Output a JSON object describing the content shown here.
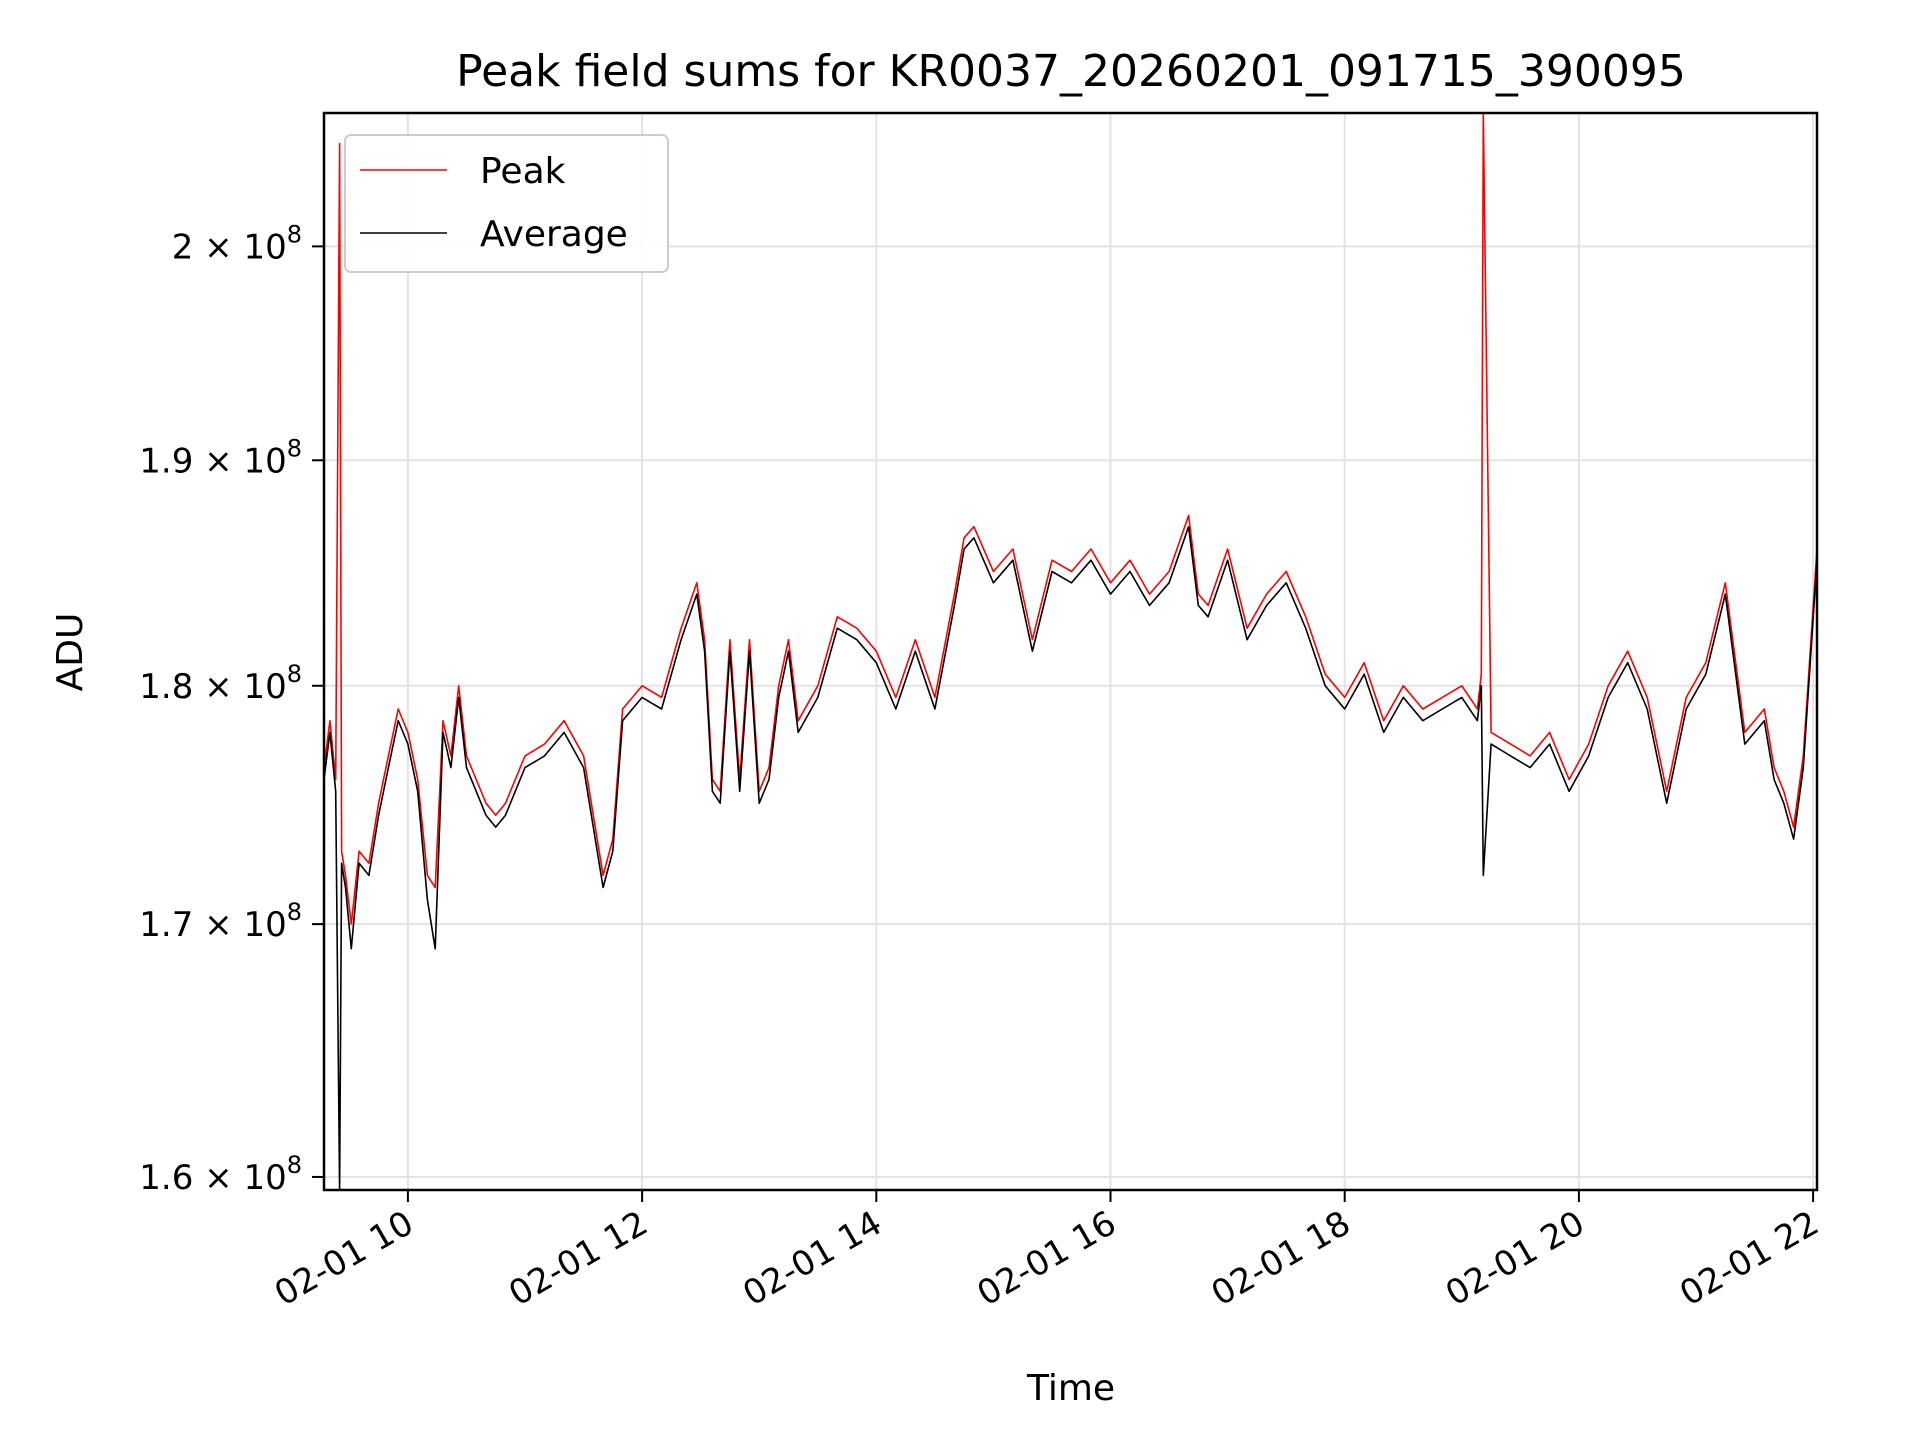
{
  "chart_data": {
    "type": "line",
    "title": "Peak field sums for KR0037_20260201_091715_390095",
    "xlabel": "Time",
    "ylabel": "ADU",
    "y_scale": "log",
    "grid": true,
    "legend_placement": "top-left",
    "x_tick_labels": [
      "02-01 10",
      "02-01 12",
      "02-01 14",
      "02-01 16",
      "02-01 18",
      "02-01 20",
      "02-01 22"
    ],
    "x_ticks": [
      "2026-02-01 10:00",
      "2026-02-01 12:00",
      "2026-02-01 14:00",
      "2026-02-01 16:00",
      "2026-02-01 18:00",
      "2026-02-01 20:00",
      "2026-02-01 22:00"
    ],
    "xlim": [
      "2026-02-01 09:17",
      "2026-02-01 22:02"
    ],
    "y_ticks": [
      {
        "value": 160000000,
        "mantissa": "1.6",
        "exponent": "8"
      },
      {
        "value": 170000000,
        "mantissa": "1.7",
        "exponent": "8"
      },
      {
        "value": 180000000,
        "mantissa": "1.8",
        "exponent": "8"
      },
      {
        "value": 190000000,
        "mantissa": "1.9",
        "exponent": "8"
      },
      {
        "value": 200000000,
        "mantissa": "2",
        "exponent": "8"
      }
    ],
    "ylim": [
      159500000,
      206500000
    ],
    "series": [
      {
        "name": "Peak",
        "color": "#ff0000",
        "x": [
          "2026-02-01 09:17",
          "2026-02-01 09:20",
          "2026-02-01 09:23",
          "2026-02-01 09:25",
          "2026-02-01 09:26",
          "2026-02-01 09:28",
          "2026-02-01 09:31",
          "2026-02-01 09:35",
          "2026-02-01 09:40",
          "2026-02-01 09:45",
          "2026-02-01 09:50",
          "2026-02-01 09:55",
          "2026-02-01 10:00",
          "2026-02-01 10:05",
          "2026-02-01 10:10",
          "2026-02-01 10:14",
          "2026-02-01 10:18",
          "2026-02-01 10:22",
          "2026-02-01 10:26",
          "2026-02-01 10:30",
          "2026-02-01 10:35",
          "2026-02-01 10:40",
          "2026-02-01 10:45",
          "2026-02-01 10:50",
          "2026-02-01 11:00",
          "2026-02-01 11:10",
          "2026-02-01 11:20",
          "2026-02-01 11:30",
          "2026-02-01 11:35",
          "2026-02-01 11:40",
          "2026-02-01 11:45",
          "2026-02-01 11:50",
          "2026-02-01 12:00",
          "2026-02-01 12:10",
          "2026-02-01 12:20",
          "2026-02-01 12:28",
          "2026-02-01 12:32",
          "2026-02-01 12:36",
          "2026-02-01 12:40",
          "2026-02-01 12:45",
          "2026-02-01 12:50",
          "2026-02-01 12:55",
          "2026-02-01 13:00",
          "2026-02-01 13:05",
          "2026-02-01 13:10",
          "2026-02-01 13:15",
          "2026-02-01 13:20",
          "2026-02-01 13:30",
          "2026-02-01 13:40",
          "2026-02-01 13:50",
          "2026-02-01 14:00",
          "2026-02-01 14:10",
          "2026-02-01 14:20",
          "2026-02-01 14:30",
          "2026-02-01 14:40",
          "2026-02-01 14:45",
          "2026-02-01 14:50",
          "2026-02-01 15:00",
          "2026-02-01 15:10",
          "2026-02-01 15:20",
          "2026-02-01 15:30",
          "2026-02-01 15:40",
          "2026-02-01 15:50",
          "2026-02-01 16:00",
          "2026-02-01 16:10",
          "2026-02-01 16:20",
          "2026-02-01 16:30",
          "2026-02-01 16:40",
          "2026-02-01 16:45",
          "2026-02-01 16:50",
          "2026-02-01 17:00",
          "2026-02-01 17:10",
          "2026-02-01 17:20",
          "2026-02-01 17:30",
          "2026-02-01 17:40",
          "2026-02-01 17:50",
          "2026-02-01 18:00",
          "2026-02-01 18:10",
          "2026-02-01 18:20",
          "2026-02-01 18:30",
          "2026-02-01 18:40",
          "2026-02-01 18:50",
          "2026-02-01 19:00",
          "2026-02-01 19:08",
          "2026-02-01 19:10",
          "2026-02-01 19:11",
          "2026-02-01 19:15",
          "2026-02-01 19:25",
          "2026-02-01 19:35",
          "2026-02-01 19:45",
          "2026-02-01 19:55",
          "2026-02-01 20:05",
          "2026-02-01 20:15",
          "2026-02-01 20:25",
          "2026-02-01 20:35",
          "2026-02-01 20:45",
          "2026-02-01 20:55",
          "2026-02-01 21:05",
          "2026-02-01 21:15",
          "2026-02-01 21:25",
          "2026-02-01 21:35",
          "2026-02-01 21:40",
          "2026-02-01 21:45",
          "2026-02-01 21:50",
          "2026-02-01 21:55",
          "2026-02-01 22:02"
        ],
        "values": [
          176500000,
          178500000,
          176000000,
          205000000,
          173000000,
          172000000,
          170000000,
          173000000,
          172500000,
          175000000,
          177000000,
          179000000,
          178000000,
          176000000,
          172000000,
          171500000,
          178500000,
          177000000,
          180000000,
          177000000,
          176000000,
          175000000,
          174500000,
          175000000,
          177000000,
          177500000,
          178500000,
          177000000,
          174500000,
          172000000,
          173500000,
          179000000,
          180000000,
          179500000,
          182500000,
          184500000,
          182000000,
          176000000,
          175500000,
          182000000,
          176000000,
          182000000,
          175500000,
          176500000,
          180000000,
          182000000,
          178500000,
          180000000,
          183000000,
          182500000,
          181500000,
          179500000,
          182000000,
          179500000,
          184000000,
          186500000,
          187000000,
          185000000,
          186000000,
          182000000,
          185500000,
          185000000,
          186000000,
          184500000,
          185500000,
          184000000,
          185000000,
          187500000,
          184000000,
          183500000,
          186000000,
          182500000,
          184000000,
          185000000,
          183000000,
          180500000,
          179500000,
          181000000,
          178500000,
          180000000,
          179000000,
          179500000,
          180000000,
          179000000,
          180500000,
          206500000,
          178000000,
          177500000,
          177000000,
          178000000,
          176000000,
          177500000,
          180000000,
          181500000,
          179500000,
          175500000,
          179500000,
          181000000,
          184500000,
          178000000,
          179000000,
          176500000,
          175500000,
          174000000,
          177000000,
          186000000
        ]
      },
      {
        "name": "Average",
        "color": "#000000",
        "x": [
          "2026-02-01 09:17",
          "2026-02-01 09:20",
          "2026-02-01 09:23",
          "2026-02-01 09:25",
          "2026-02-01 09:26",
          "2026-02-01 09:28",
          "2026-02-01 09:31",
          "2026-02-01 09:35",
          "2026-02-01 09:40",
          "2026-02-01 09:45",
          "2026-02-01 09:50",
          "2026-02-01 09:55",
          "2026-02-01 10:00",
          "2026-02-01 10:05",
          "2026-02-01 10:10",
          "2026-02-01 10:14",
          "2026-02-01 10:18",
          "2026-02-01 10:22",
          "2026-02-01 10:26",
          "2026-02-01 10:30",
          "2026-02-01 10:35",
          "2026-02-01 10:40",
          "2026-02-01 10:45",
          "2026-02-01 10:50",
          "2026-02-01 11:00",
          "2026-02-01 11:10",
          "2026-02-01 11:20",
          "2026-02-01 11:30",
          "2026-02-01 11:35",
          "2026-02-01 11:40",
          "2026-02-01 11:45",
          "2026-02-01 11:50",
          "2026-02-01 12:00",
          "2026-02-01 12:10",
          "2026-02-01 12:20",
          "2026-02-01 12:28",
          "2026-02-01 12:32",
          "2026-02-01 12:36",
          "2026-02-01 12:40",
          "2026-02-01 12:45",
          "2026-02-01 12:50",
          "2026-02-01 12:55",
          "2026-02-01 13:00",
          "2026-02-01 13:05",
          "2026-02-01 13:10",
          "2026-02-01 13:15",
          "2026-02-01 13:20",
          "2026-02-01 13:30",
          "2026-02-01 13:40",
          "2026-02-01 13:50",
          "2026-02-01 14:00",
          "2026-02-01 14:10",
          "2026-02-01 14:20",
          "2026-02-01 14:30",
          "2026-02-01 14:40",
          "2026-02-01 14:45",
          "2026-02-01 14:50",
          "2026-02-01 15:00",
          "2026-02-01 15:10",
          "2026-02-01 15:20",
          "2026-02-01 15:30",
          "2026-02-01 15:40",
          "2026-02-01 15:50",
          "2026-02-01 16:00",
          "2026-02-01 16:10",
          "2026-02-01 16:20",
          "2026-02-01 16:30",
          "2026-02-01 16:40",
          "2026-02-01 16:45",
          "2026-02-01 16:50",
          "2026-02-01 17:00",
          "2026-02-01 17:10",
          "2026-02-01 17:20",
          "2026-02-01 17:30",
          "2026-02-01 17:40",
          "2026-02-01 17:50",
          "2026-02-01 18:00",
          "2026-02-01 18:10",
          "2026-02-01 18:20",
          "2026-02-01 18:30",
          "2026-02-01 18:40",
          "2026-02-01 18:50",
          "2026-02-01 19:00",
          "2026-02-01 19:08",
          "2026-02-01 19:10",
          "2026-02-01 19:11",
          "2026-02-01 19:15",
          "2026-02-01 19:25",
          "2026-02-01 19:35",
          "2026-02-01 19:45",
          "2026-02-01 19:55",
          "2026-02-01 20:05",
          "2026-02-01 20:15",
          "2026-02-01 20:25",
          "2026-02-01 20:35",
          "2026-02-01 20:45",
          "2026-02-01 20:55",
          "2026-02-01 21:05",
          "2026-02-01 21:15",
          "2026-02-01 21:25",
          "2026-02-01 21:35",
          "2026-02-01 21:40",
          "2026-02-01 21:45",
          "2026-02-01 21:50",
          "2026-02-01 21:55",
          "2026-02-01 22:02"
        ],
        "values": [
          176000000,
          178000000,
          175500000,
          159500000,
          172500000,
          171500000,
          169000000,
          172500000,
          172000000,
          174500000,
          176500000,
          178500000,
          177500000,
          175500000,
          171000000,
          169000000,
          178000000,
          176500000,
          179500000,
          176500000,
          175500000,
          174500000,
          174000000,
          174500000,
          176500000,
          177000000,
          178000000,
          176500000,
          174000000,
          171500000,
          173000000,
          178500000,
          179500000,
          179000000,
          182000000,
          184000000,
          181500000,
          175500000,
          175000000,
          181500000,
          175500000,
          181500000,
          175000000,
          176000000,
          179500000,
          181500000,
          178000000,
          179500000,
          182500000,
          182000000,
          181000000,
          179000000,
          181500000,
          179000000,
          183500000,
          186000000,
          186500000,
          184500000,
          185500000,
          181500000,
          185000000,
          184500000,
          185500000,
          184000000,
          185000000,
          183500000,
          184500000,
          187000000,
          183500000,
          183000000,
          185500000,
          182000000,
          183500000,
          184500000,
          182500000,
          180000000,
          179000000,
          180500000,
          178000000,
          179500000,
          178500000,
          179000000,
          179500000,
          178500000,
          180000000,
          172000000,
          177500000,
          177000000,
          176500000,
          177500000,
          175500000,
          177000000,
          179500000,
          181000000,
          179000000,
          175000000,
          179000000,
          180500000,
          184000000,
          177500000,
          178500000,
          176000000,
          175000000,
          173500000,
          176500000,
          185500000
        ]
      }
    ]
  }
}
